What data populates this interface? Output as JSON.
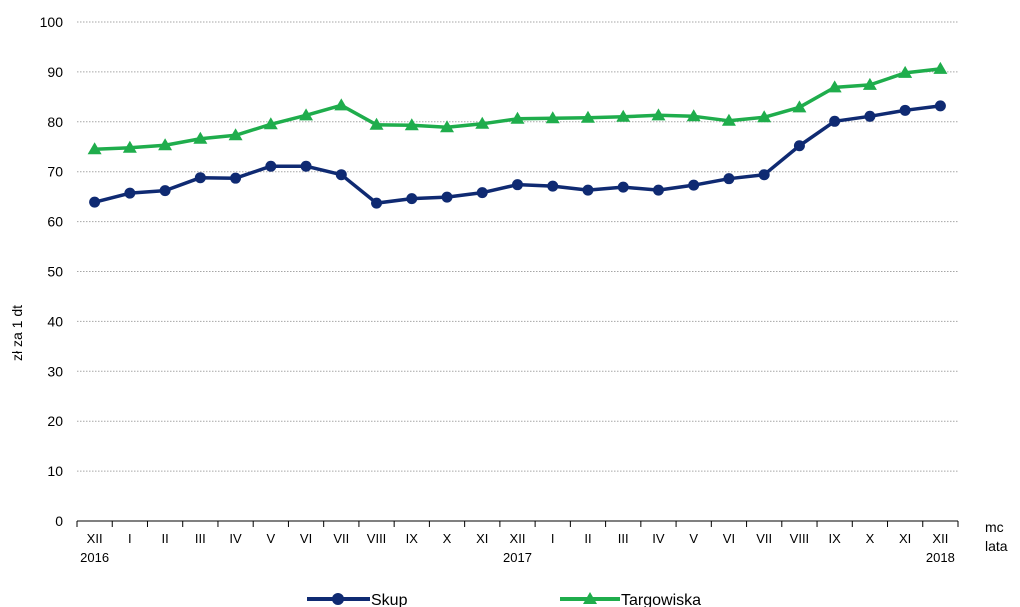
{
  "chart_data": {
    "type": "line",
    "ylabel": "zł za 1 dt",
    "xlabel_top": "mc",
    "xlabel_bottom": "lata",
    "ylim": [
      0,
      100
    ],
    "yticks": [
      0,
      10,
      20,
      30,
      40,
      50,
      60,
      70,
      80,
      90,
      100
    ],
    "grid": true,
    "legend_position": "bottom",
    "categories": [
      "XII",
      "I",
      "II",
      "III",
      "IV",
      "V",
      "VI",
      "VII",
      "VIII",
      "IX",
      "X",
      "XI",
      "XII",
      "I",
      "II",
      "III",
      "IV",
      "V",
      "VI",
      "VII",
      "VIII",
      "IX",
      "X",
      "XI",
      "XII"
    ],
    "year_labels": [
      {
        "index": 0,
        "label": "2016"
      },
      {
        "index": 12,
        "label": "2017"
      },
      {
        "index": 24,
        "label": "2018"
      }
    ],
    "series": [
      {
        "name": "Skup",
        "color": "#0f2a72",
        "marker": "circle",
        "values": [
          63.9,
          65.7,
          66.2,
          68.8,
          68.7,
          71.1,
          71.1,
          69.4,
          63.7,
          64.6,
          64.9,
          65.8,
          67.4,
          67.1,
          66.3,
          66.9,
          66.3,
          67.3,
          68.6,
          69.4,
          75.2,
          80.1,
          81.1,
          82.3,
          83.2
        ]
      },
      {
        "name": "Targowiska",
        "color": "#1fad4c",
        "marker": "triangle",
        "values": [
          74.5,
          74.8,
          75.3,
          76.6,
          77.3,
          79.5,
          81.3,
          83.3,
          79.4,
          79.3,
          78.9,
          79.6,
          80.6,
          80.7,
          80.8,
          81.0,
          81.3,
          81.1,
          80.2,
          80.9,
          82.9,
          86.9,
          87.4,
          89.8,
          90.6
        ]
      }
    ]
  }
}
